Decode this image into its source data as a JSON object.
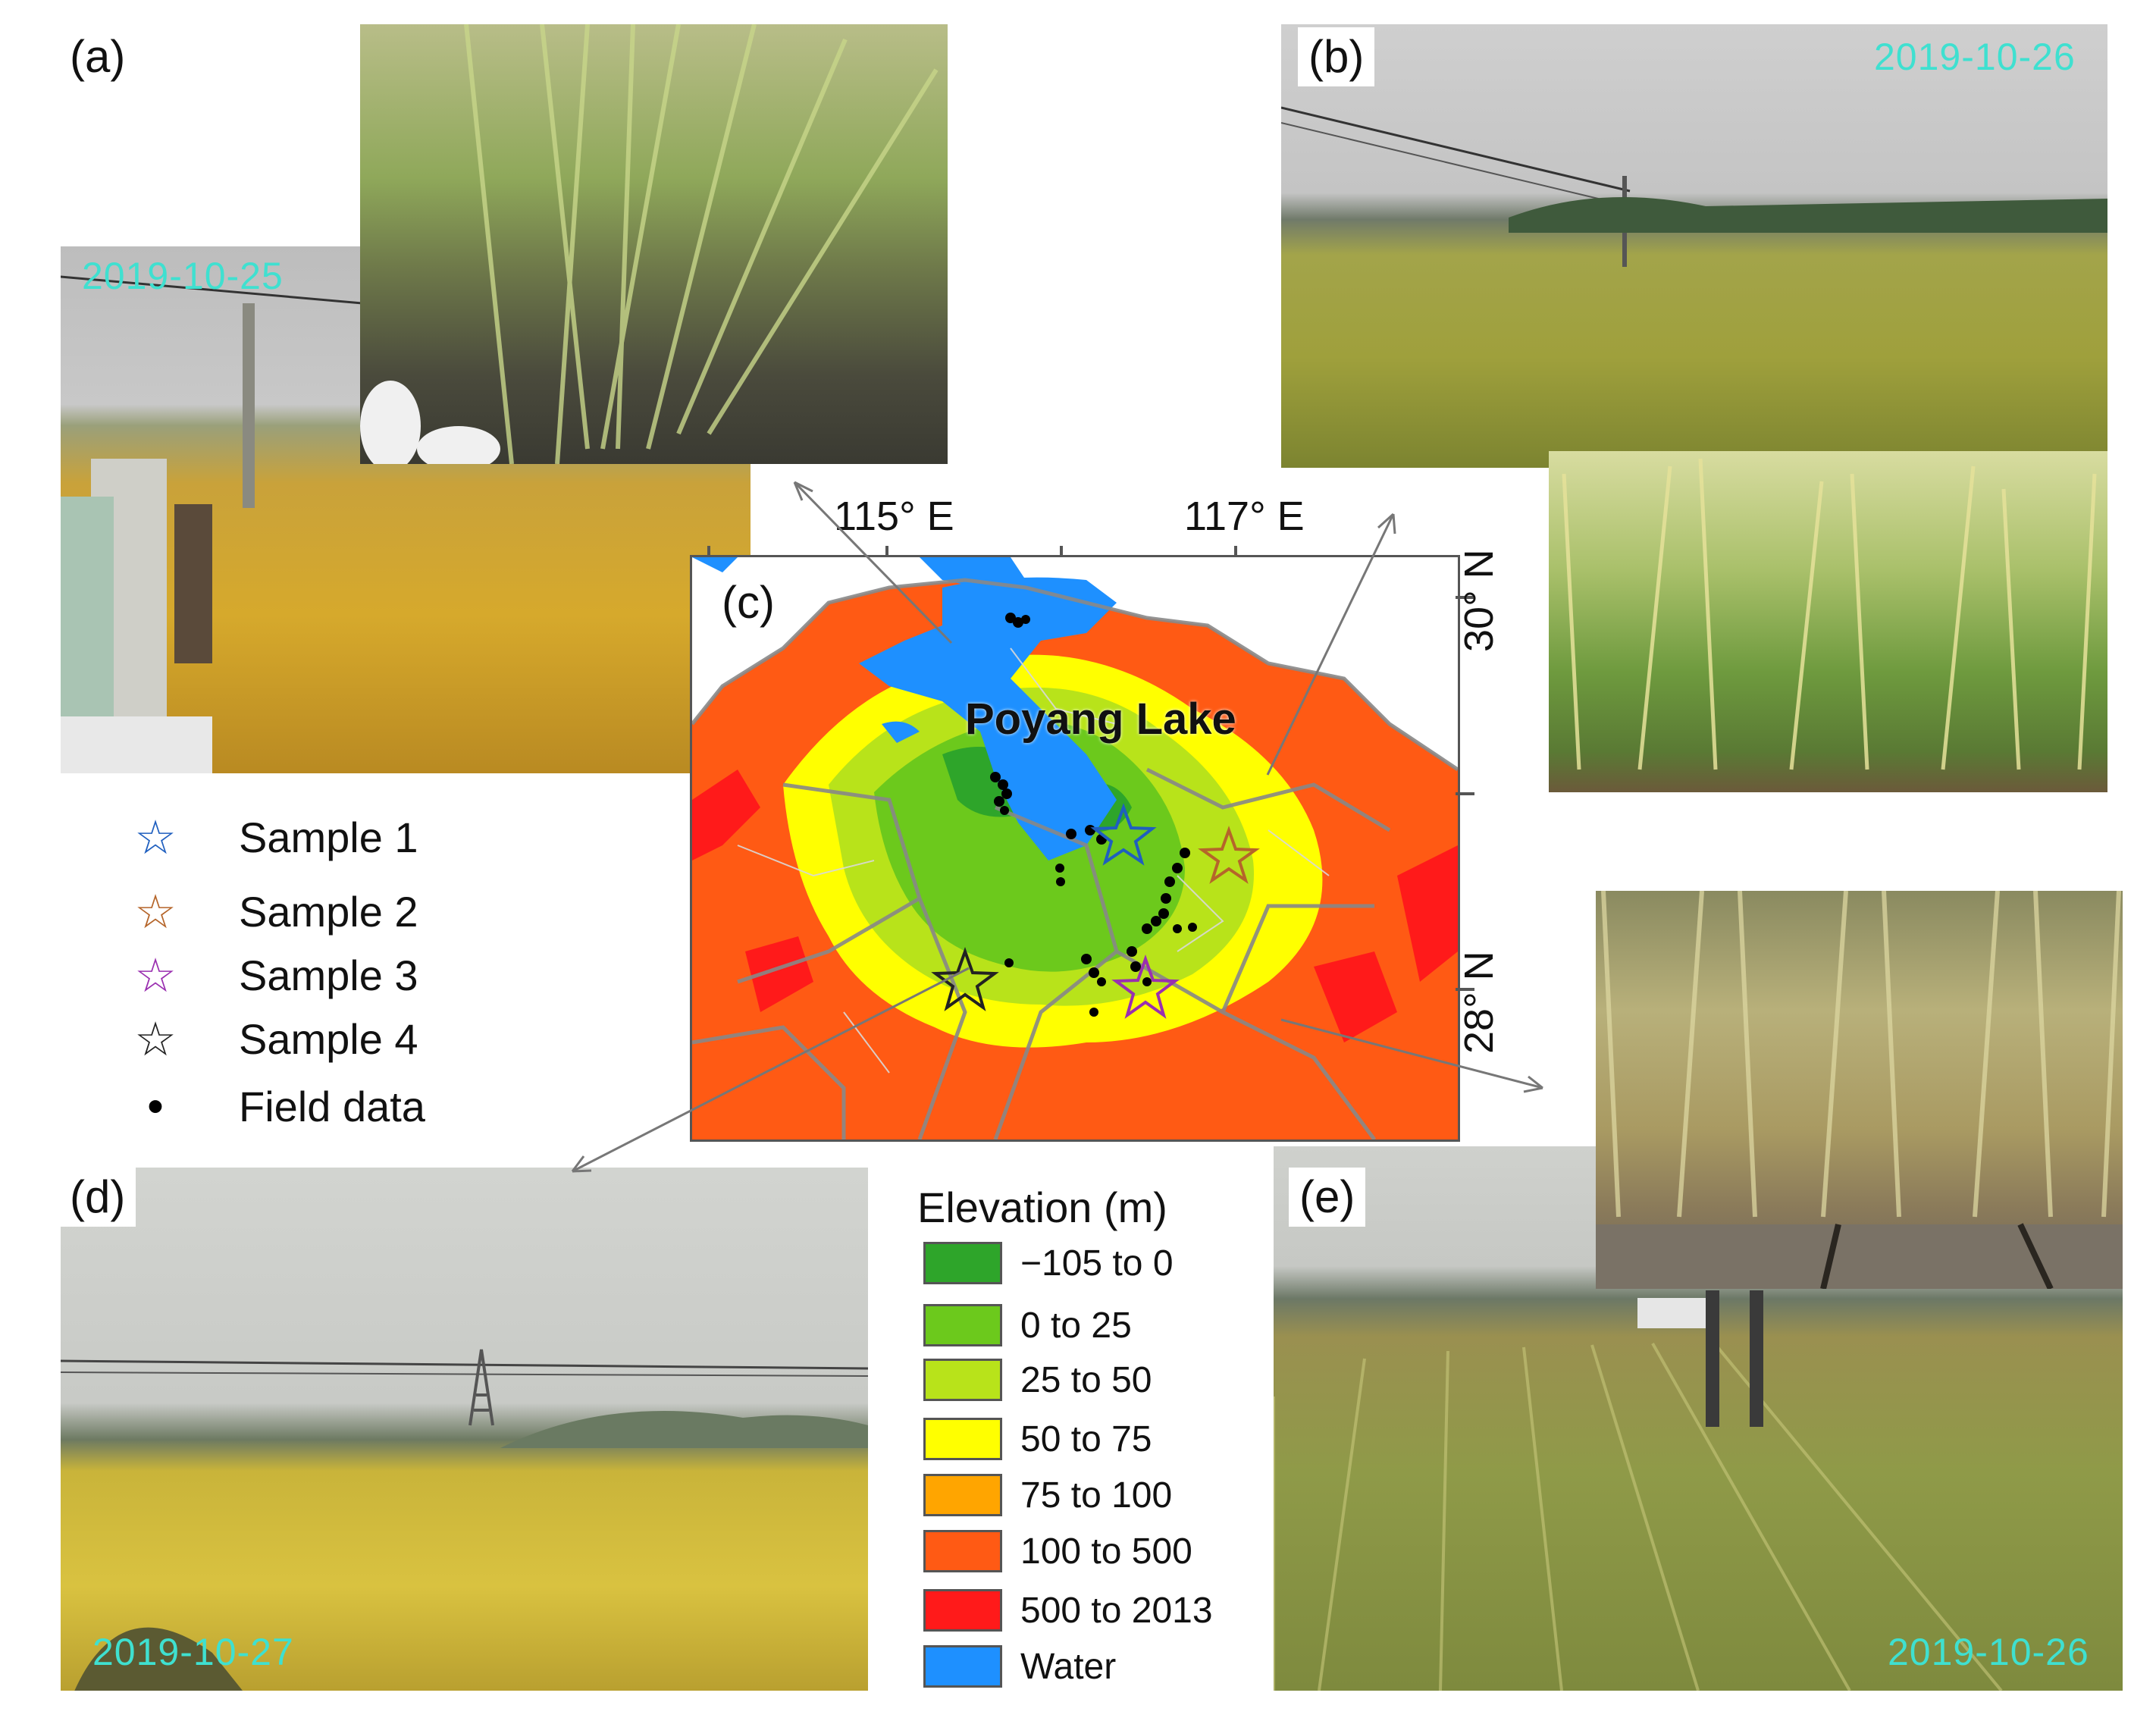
{
  "panels": {
    "a": {
      "label": "(a)",
      "date": "2019-10-25"
    },
    "b": {
      "label": "(b)",
      "date": "2019-10-26"
    },
    "c": {
      "label": "(c)"
    },
    "d": {
      "label": "(d)",
      "date": "2019-10-27"
    },
    "e": {
      "label": "(e)",
      "date": "2019-10-26"
    }
  },
  "map": {
    "lake_label": "Poyang Lake",
    "lon_ticks": [
      "115° E",
      "117° E"
    ],
    "lat_ticks": [
      "30° N",
      "28° N"
    ]
  },
  "symbol_legend": [
    {
      "label": "Sample 1",
      "symbol": "star",
      "color": "#1f5fbf"
    },
    {
      "label": "Sample 2",
      "symbol": "star",
      "color": "#b5652a"
    },
    {
      "label": "Sample 3",
      "symbol": "star",
      "color": "#9a2fb0"
    },
    {
      "label": "Sample 4",
      "symbol": "star",
      "color": "#222222"
    },
    {
      "label": "Field data",
      "symbol": "dot",
      "color": "#000000"
    }
  ],
  "elevation_legend": {
    "title": "Elevation (m)",
    "items": [
      {
        "label": "−105 to 0",
        "color": "#2ea52a"
      },
      {
        "label": "0 to 25",
        "color": "#6cc91c"
      },
      {
        "label": "25 to 50",
        "color": "#b8e31a"
      },
      {
        "label": "50 to 75",
        "color": "#ffff00"
      },
      {
        "label": "75 to 100",
        "color": "#ffa500"
      },
      {
        "label": "100 to 500",
        "color": "#ff5a14"
      },
      {
        "label": "500 to 2013",
        "color": "#ff1a1a"
      },
      {
        "label": "Water",
        "color": "#1e90ff"
      }
    ]
  }
}
